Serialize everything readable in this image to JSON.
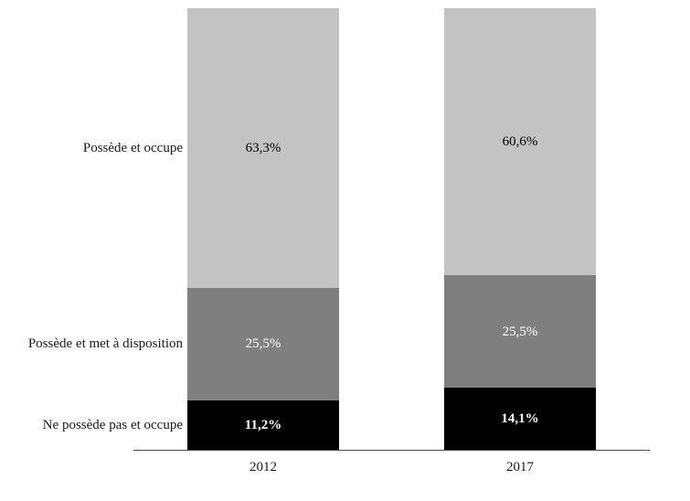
{
  "chart_data": {
    "type": "bar",
    "subtype": "stacked-column",
    "title": "",
    "xlabel": "",
    "ylabel": "",
    "ylim": [
      0,
      100
    ],
    "grid": false,
    "legend_position": "left-as-row-labels",
    "categories": [
      "2012",
      "2017"
    ],
    "series": [
      {
        "name": "Possède et occupe",
        "values": [
          63.3,
          60.6
        ],
        "value_labels": [
          "63,3%",
          "60,6%"
        ],
        "color": "#c3c3c3",
        "label_color": "#000000"
      },
      {
        "name": "Possède et met à disposition",
        "values": [
          25.5,
          25.5
        ],
        "value_labels": [
          "25,5%",
          "25,5%"
        ],
        "color": "#7f7f7f",
        "label_color": "#ffffff"
      },
      {
        "name": "Ne possède pas et occupe",
        "values": [
          11.2,
          14.1
        ],
        "value_labels": [
          "11,2%",
          "14,1%"
        ],
        "color": "#000000",
        "label_color": "#ffffff"
      }
    ]
  }
}
